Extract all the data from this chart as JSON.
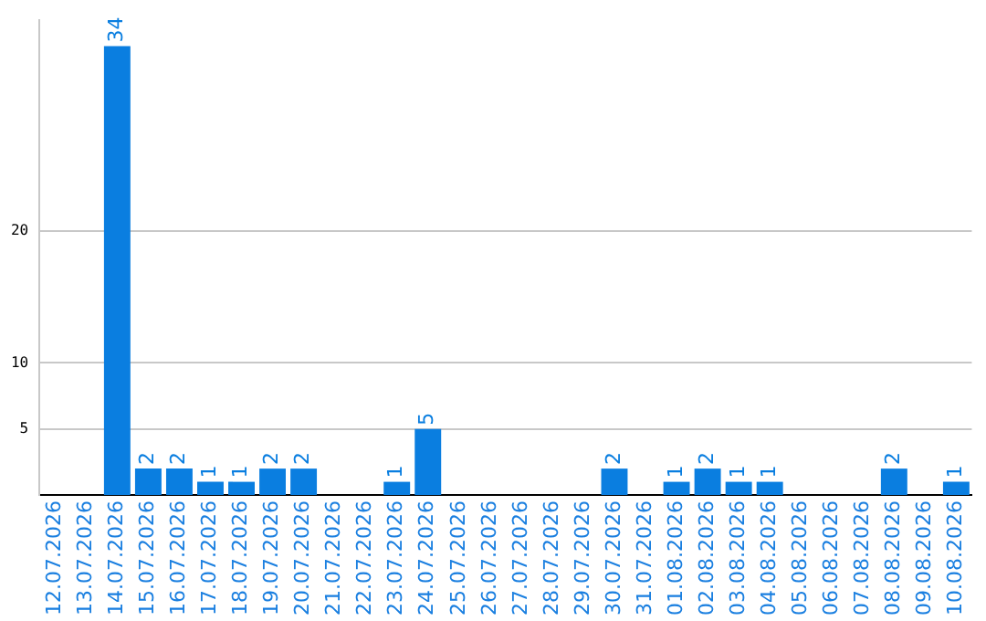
{
  "chart_data": {
    "type": "bar",
    "categories": [
      "12.07.2026",
      "13.07.2026",
      "14.07.2026",
      "15.07.2026",
      "16.07.2026",
      "17.07.2026",
      "18.07.2026",
      "19.07.2026",
      "20.07.2026",
      "21.07.2026",
      "22.07.2026",
      "23.07.2026",
      "24.07.2026",
      "25.07.2026",
      "26.07.2026",
      "27.07.2026",
      "28.07.2026",
      "29.07.2026",
      "30.07.2026",
      "31.07.2026",
      "01.08.2026",
      "02.08.2026",
      "03.08.2026",
      "04.08.2026",
      "05.08.2026",
      "06.08.2026",
      "07.08.2026",
      "08.08.2026",
      "09.08.2026",
      "10.08.2026"
    ],
    "values": [
      0,
      0,
      34,
      2,
      2,
      1,
      1,
      2,
      2,
      0,
      0,
      1,
      5,
      0,
      0,
      0,
      0,
      0,
      2,
      0,
      1,
      2,
      1,
      1,
      0,
      0,
      0,
      2,
      0,
      1
    ],
    "value_labels": [
      null,
      null,
      "34",
      "2",
      "2",
      "1",
      "1",
      "2",
      "2",
      null,
      null,
      "1",
      "5",
      null,
      null,
      null,
      null,
      null,
      "2",
      null,
      "1",
      "2",
      "1",
      "1",
      null,
      null,
      null,
      "2",
      null,
      "1"
    ],
    "color": "#0a7ee0",
    "ylim": [
      0,
      36
    ],
    "yticks": [
      5,
      10,
      20
    ],
    "grid": "y",
    "legend": false
  }
}
